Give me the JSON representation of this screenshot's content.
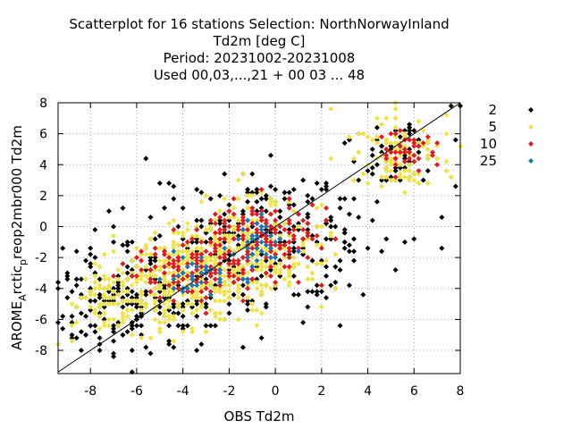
{
  "chart_data": {
    "type": "scatter",
    "title_lines": [
      "Scatterplot for   16 stations Selection: NorthNorwayInland",
      "Td2m [deg C]",
      "Period: 20231002-20231008",
      "Used  00,03,...,21  + 00 03 ... 48"
    ],
    "xlabel": "OBS Td2m",
    "ylabel": {
      "base": "AROME",
      "sub1": "A",
      "mid": "rctic",
      "sub2": "p",
      "rest": "reop2mbr000 Td2m"
    },
    "xlim": [
      -9.4,
      8.0
    ],
    "ylim": [
      -9.5,
      8.0
    ],
    "xticks": [
      -8,
      -6,
      -4,
      -2,
      0,
      2,
      4,
      6,
      8
    ],
    "yticks": [
      -8,
      -6,
      -4,
      -2,
      0,
      2,
      4,
      6,
      8
    ],
    "grid": true,
    "diagonal": true,
    "legend_position": "right",
    "series": [
      {
        "name": "2",
        "color": "#000000",
        "count": 620,
        "clusters": [
          [
            -6.5,
            -4.5,
            1.8,
            1.8,
            0.35
          ],
          [
            -2,
            -1.5,
            2.2,
            2.4,
            0.35
          ],
          [
            5.5,
            5,
            1.1,
            1.2,
            0.15
          ],
          [
            1.5,
            -0.5,
            2,
            2,
            0.15
          ]
        ]
      },
      {
        "name": "5",
        "color": "#f0e442",
        "count": 780,
        "clusters": [
          [
            -4,
            -3.3,
            1.6,
            1.5,
            0.4
          ],
          [
            -1,
            -1.5,
            1.6,
            1.6,
            0.35
          ],
          [
            5.5,
            4.8,
            1,
            1.2,
            0.15
          ],
          [
            -7,
            -5,
            1,
            1.2,
            0.1
          ]
        ]
      },
      {
        "name": "10",
        "color": "#e41a1c",
        "count": 300,
        "clusters": [
          [
            -3.5,
            -3,
            1.3,
            1,
            0.4
          ],
          [
            -0.7,
            -0.7,
            1.2,
            1.3,
            0.5
          ],
          [
            5.8,
            5,
            0.6,
            0.8,
            0.1
          ]
        ]
      },
      {
        "name": "25",
        "color": "#1f78b4",
        "count": 70,
        "clusters": [
          [
            -3.5,
            -3.2,
            0.8,
            0.7,
            0.4
          ],
          [
            -0.6,
            -1,
            0.8,
            0.9,
            0.6
          ]
        ]
      }
    ]
  }
}
